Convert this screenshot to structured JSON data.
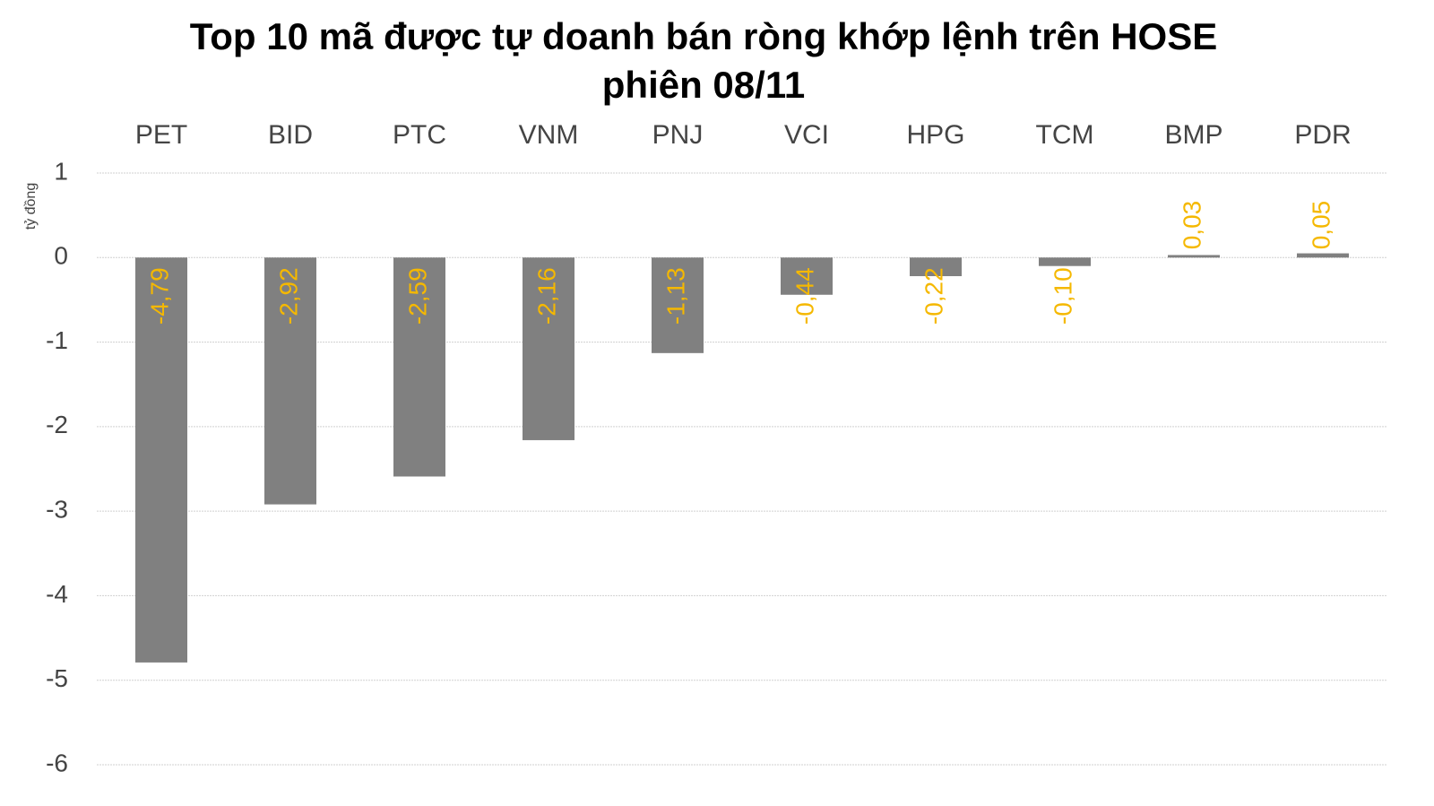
{
  "chart_data": {
    "type": "bar",
    "title": "Top 10 mã được tự doanh bán ròng khớp lệnh trên HOSE phiên 08/11",
    "y_label": "tỷ đồng",
    "categories": [
      "PET",
      "BID",
      "PTC",
      "VNM",
      "PNJ",
      "VCI",
      "HPG",
      "TCM",
      "BMP",
      "PDR"
    ],
    "values": [
      -4.79,
      -2.92,
      -2.59,
      -2.16,
      -1.13,
      -0.44,
      -0.22,
      -0.1,
      0.03,
      0.05
    ],
    "value_labels": [
      "-4,79",
      "-2,92",
      "-2,59",
      "-2,16",
      "-1,13",
      "-0,44",
      "-0,22",
      "-0,10",
      "0,03",
      "0,05"
    ],
    "color": "#808080",
    "label_color": "#f5b800",
    "ylim": [
      -6,
      1
    ],
    "yticks": [
      1,
      0,
      -1,
      -2,
      -3,
      -4,
      -5,
      -6
    ],
    "grid": true
  }
}
